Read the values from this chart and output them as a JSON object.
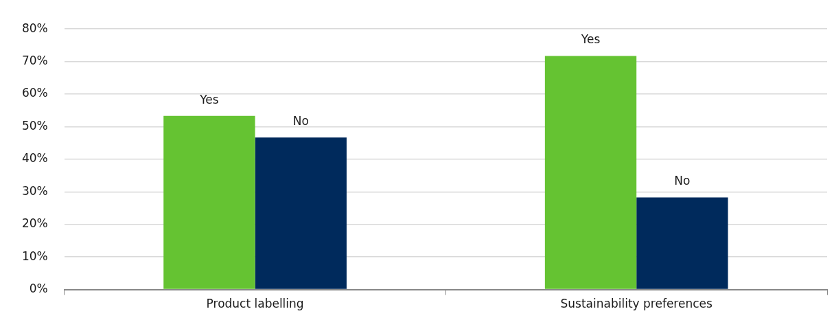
{
  "chart_data": {
    "type": "bar",
    "categories": [
      "Product labelling",
      "Sustainability preferences"
    ],
    "series": [
      {
        "name": "Yes",
        "color": "#65c332",
        "values": [
          53.3,
          71.7
        ]
      },
      {
        "name": "No",
        "color": "#002a5c",
        "values": [
          46.7,
          28.3
        ]
      }
    ],
    "ylim": [
      0,
      80
    ],
    "yticks": [
      {
        "value": 0,
        "label": "0%"
      },
      {
        "value": 10,
        "label": "10%"
      },
      {
        "value": 20,
        "label": "20%"
      },
      {
        "value": 30,
        "label": "30%"
      },
      {
        "value": 40,
        "label": "40%"
      },
      {
        "value": 50,
        "label": "50%"
      },
      {
        "value": 60,
        "label": "60%"
      },
      {
        "value": 70,
        "label": "70%"
      },
      {
        "value": 80,
        "label": "80%"
      }
    ],
    "grid": "y",
    "legend": false
  }
}
